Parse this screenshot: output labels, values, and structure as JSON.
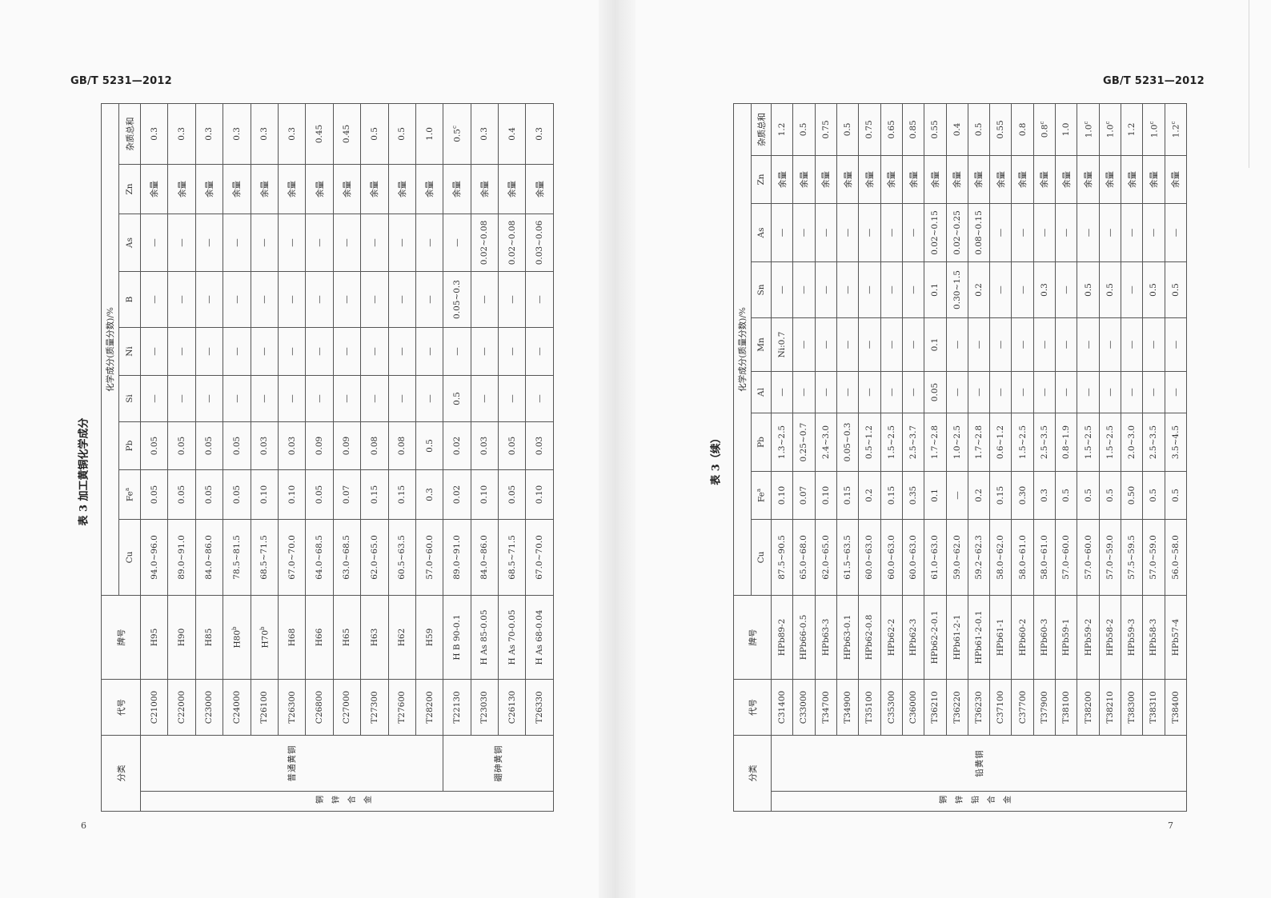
{
  "left_page": {
    "header": "GB/T 5231—2012",
    "page_number": "6",
    "table": {
      "title": "表 3 加工黄铜化学成分",
      "columns": {
        "category": "分类",
        "code": "代号",
        "grade": "牌号",
        "composition": "化学成分(质量分数)/%",
        "elements": [
          "Cu",
          {
            "text": "Fe",
            "sup": "a"
          },
          "Pb",
          "Si",
          "Ni",
          "B",
          "As",
          "Zn",
          "杂质总和"
        ]
      },
      "group": "铜锌合金",
      "subgroups": [
        {
          "name": "普通黄铜",
          "rows": [
            [
              "C21000",
              "H95",
              "94.0~96.0",
              "0.05",
              "0.05",
              "—",
              "—",
              "—",
              "—",
              "余量",
              "0.3"
            ],
            [
              "C22000",
              "H90",
              "89.0~91.0",
              "0.05",
              "0.05",
              "—",
              "—",
              "—",
              "—",
              "余量",
              "0.3"
            ],
            [
              "C23000",
              "H85",
              "84.0~86.0",
              "0.05",
              "0.05",
              "—",
              "—",
              "—",
              "—",
              "余量",
              "0.3"
            ],
            [
              "C24000",
              {
                "text": "H80",
                "sup": "b"
              },
              "78.5~81.5",
              "0.05",
              "0.05",
              "—",
              "—",
              "—",
              "—",
              "余量",
              "0.3"
            ],
            [
              "T26100",
              {
                "text": "H70",
                "sup": "b"
              },
              "68.5~71.5",
              "0.10",
              "0.03",
              "—",
              "—",
              "—",
              "—",
              "余量",
              "0.3"
            ],
            [
              "T26300",
              "H68",
              "67.0~70.0",
              "0.10",
              "0.03",
              "—",
              "—",
              "—",
              "—",
              "余量",
              "0.3"
            ],
            [
              "C26800",
              "H66",
              "64.0~68.5",
              "0.05",
              "0.09",
              "—",
              "—",
              "—",
              "—",
              "余量",
              "0.45"
            ],
            [
              "C27000",
              "H65",
              "63.0~68.5",
              "0.07",
              "0.09",
              "—",
              "—",
              "—",
              "—",
              "余量",
              "0.45"
            ],
            [
              "T27300",
              "H63",
              "62.0~65.0",
              "0.15",
              "0.08",
              "—",
              "—",
              "—",
              "—",
              "余量",
              "0.5"
            ],
            [
              "T27600",
              "H62",
              "60.5~63.5",
              "0.15",
              "0.08",
              "—",
              "—",
              "—",
              "—",
              "余量",
              "0.5"
            ],
            [
              "T28200",
              "H59",
              "57.0~60.0",
              "0.3",
              "0.5",
              "—",
              "—",
              "—",
              "—",
              "余量",
              "1.0"
            ]
          ]
        },
        {
          "name": "硼砷黄铜",
          "rows": [
            [
              "T22130",
              "H B 90-0.1",
              "89.0~91.0",
              "0.02",
              "0.02",
              "0.5",
              "—",
              "0.05~0.3",
              "—",
              "余量",
              {
                "text": "0.5",
                "sup": "c"
              }
            ],
            [
              "T23030",
              "H As 85-0.05",
              "84.0~86.0",
              "0.10",
              "0.03",
              "—",
              "—",
              "—",
              "0.02~0.08",
              "余量",
              "0.3"
            ],
            [
              "C26130",
              "H As 70-0.05",
              "68.5~71.5",
              "0.05",
              "0.05",
              "—",
              "—",
              "—",
              "0.02~0.08",
              "余量",
              "0.4"
            ],
            [
              "T26330",
              "H As 68-0.04",
              "67.0~70.0",
              "0.10",
              "0.03",
              "—",
              "—",
              "—",
              "0.03~0.06",
              "余量",
              "0.3"
            ]
          ]
        }
      ]
    }
  },
  "right_page": {
    "header": "GB/T 5231—2012",
    "page_number": "7",
    "table": {
      "title": "表 3（续）",
      "columns": {
        "category": "分类",
        "code": "代号",
        "grade": "牌号",
        "composition": "化学成分(质量分数)/%",
        "elements": [
          "Cu",
          {
            "text": "Fe",
            "sup": "a"
          },
          "Pb",
          "Al",
          "Mn",
          "Sn",
          "As",
          "Zn",
          "杂质总和"
        ]
      },
      "group": "铜锌铅合金",
      "subgroups": [
        {
          "name": "铅黄铜",
          "rows": [
            [
              "C31400",
              "HPb89-2",
              "87.5~90.5",
              "0.10",
              "1.3~2.5",
              "—",
              "Ni:0.7",
              "—",
              "—",
              "余量",
              "1.2"
            ],
            [
              "C33000",
              "HPb66-0.5",
              "65.0~68.0",
              "0.07",
              "0.25~0.7",
              "—",
              "—",
              "—",
              "—",
              "余量",
              "0.5"
            ],
            [
              "T34700",
              "HPb63-3",
              "62.0~65.0",
              "0.10",
              "2.4~3.0",
              "—",
              "—",
              "—",
              "—",
              "余量",
              "0.75"
            ],
            [
              "T34900",
              "HPb63-0.1",
              "61.5~63.5",
              "0.15",
              "0.05~0.3",
              "—",
              "—",
              "—",
              "—",
              "余量",
              "0.5"
            ],
            [
              "T35100",
              "HPb62-0.8",
              "60.0~63.0",
              "0.2",
              "0.5~1.2",
              "—",
              "—",
              "—",
              "—",
              "余量",
              "0.75"
            ],
            [
              "C35300",
              "HPb62-2",
              "60.0~63.0",
              "0.15",
              "1.5~2.5",
              "—",
              "—",
              "—",
              "—",
              "余量",
              "0.65"
            ],
            [
              "C36000",
              "HPb62-3",
              "60.0~63.0",
              "0.35",
              "2.5~3.7",
              "—",
              "—",
              "—",
              "—",
              "余量",
              "0.85"
            ],
            [
              "T36210",
              "HPb62-2-0.1",
              "61.0~63.0",
              "0.1",
              "1.7~2.8",
              "0.05",
              "0.1",
              "0.1",
              "0.02~0.15",
              "余量",
              "0.55"
            ],
            [
              "T36220",
              "HPb61-2-1",
              "59.0~62.0",
              "—",
              "1.0~2.5",
              "—",
              "—",
              "0.30~1.5",
              "0.02~0.25",
              "余量",
              "0.4"
            ],
            [
              "T36230",
              "HPb61-2-0.1",
              "59.2~62.3",
              "0.2",
              "1.7~2.8",
              "—",
              "—",
              "0.2",
              "0.08~0.15",
              "余量",
              "0.5"
            ],
            [
              "C37100",
              "HPb61-1",
              "58.0~62.0",
              "0.15",
              "0.6~1.2",
              "—",
              "—",
              "—",
              "—",
              "余量",
              "0.55"
            ],
            [
              "C37700",
              "HPb60-2",
              "58.0~61.0",
              "0.30",
              "1.5~2.5",
              "—",
              "—",
              "—",
              "—",
              "余量",
              "0.8"
            ],
            [
              "T37900",
              "HPb60-3",
              "58.0~61.0",
              "0.3",
              "2.5~3.5",
              "—",
              "—",
              "0.3",
              "—",
              "余量",
              {
                "text": "0.8",
                "sup": "c"
              }
            ],
            [
              "T38100",
              "HPb59-1",
              "57.0~60.0",
              "0.5",
              "0.8~1.9",
              "—",
              "—",
              "—",
              "—",
              "余量",
              "1.0"
            ],
            [
              "T38200",
              "HPb59-2",
              "57.0~60.0",
              "0.5",
              "1.5~2.5",
              "—",
              "—",
              "0.5",
              "—",
              "余量",
              {
                "text": "1.0",
                "sup": "c"
              }
            ],
            [
              "T38210",
              "HPb58-2",
              "57.0~59.0",
              "0.5",
              "1.5~2.5",
              "—",
              "—",
              "0.5",
              "—",
              "余量",
              {
                "text": "1.0",
                "sup": "c"
              }
            ],
            [
              "T38300",
              "HPb59-3",
              "57.5~59.5",
              "0.50",
              "2.0~3.0",
              "—",
              "—",
              "—",
              "—",
              "余量",
              "1.2"
            ],
            [
              "T38310",
              "HPb58-3",
              "57.0~59.0",
              "0.5",
              "2.5~3.5",
              "—",
              "—",
              "0.5",
              "—",
              "余量",
              {
                "text": "1.0",
                "sup": "c"
              }
            ],
            [
              "T38400",
              "HPb57-4",
              "56.0~58.0",
              "0.5",
              "3.5~4.5",
              "—",
              "—",
              "0.5",
              "—",
              "余量",
              {
                "text": "1.2",
                "sup": "c"
              }
            ]
          ]
        }
      ]
    }
  }
}
